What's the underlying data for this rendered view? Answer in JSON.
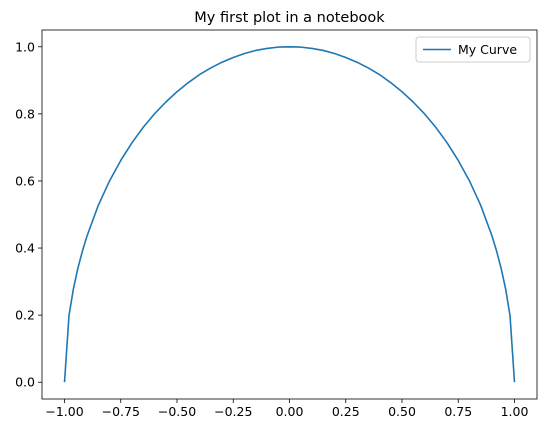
{
  "chart_data": {
    "type": "line",
    "title": "My first plot in a notebook",
    "xlabel": "",
    "ylabel": "",
    "xlim": [
      -1.1,
      1.1
    ],
    "ylim": [
      -0.05,
      1.05
    ],
    "xticks": [
      -1.0,
      -0.75,
      -0.5,
      -0.25,
      0.0,
      0.25,
      0.5,
      0.75,
      1.0
    ],
    "xtick_labels": [
      "−1.00",
      "−0.75",
      "−0.50",
      "−0.25",
      "0.00",
      "0.25",
      "0.50",
      "0.75",
      "1.00"
    ],
    "yticks": [
      0.0,
      0.2,
      0.4,
      0.6,
      0.8,
      1.0
    ],
    "ytick_labels": [
      "0.0",
      "0.2",
      "0.4",
      "0.6",
      "0.8",
      "1.0"
    ],
    "grid": false,
    "legend_position": "top-right",
    "series": [
      {
        "name": "My Curve",
        "color": "#1f77b4",
        "x": [
          -1.0,
          -0.98,
          -0.96,
          -0.94,
          -0.92,
          -0.9,
          -0.85,
          -0.8,
          -0.75,
          -0.7,
          -0.65,
          -0.6,
          -0.55,
          -0.5,
          -0.45,
          -0.4,
          -0.35,
          -0.3,
          -0.25,
          -0.2,
          -0.15,
          -0.1,
          -0.05,
          0.0,
          0.05,
          0.1,
          0.15,
          0.2,
          0.25,
          0.3,
          0.35,
          0.4,
          0.45,
          0.5,
          0.55,
          0.6,
          0.65,
          0.7,
          0.75,
          0.8,
          0.85,
          0.9,
          0.92,
          0.94,
          0.96,
          0.98,
          1.0
        ],
        "y": [
          0.0,
          0.199,
          0.28,
          0.341,
          0.392,
          0.436,
          0.527,
          0.6,
          0.661,
          0.714,
          0.76,
          0.8,
          0.835,
          0.866,
          0.893,
          0.917,
          0.937,
          0.954,
          0.968,
          0.98,
          0.989,
          0.995,
          0.999,
          1.0,
          0.999,
          0.995,
          0.989,
          0.98,
          0.968,
          0.954,
          0.937,
          0.917,
          0.893,
          0.866,
          0.835,
          0.8,
          0.76,
          0.714,
          0.661,
          0.6,
          0.527,
          0.436,
          0.392,
          0.341,
          0.28,
          0.199,
          0.0
        ]
      }
    ]
  }
}
